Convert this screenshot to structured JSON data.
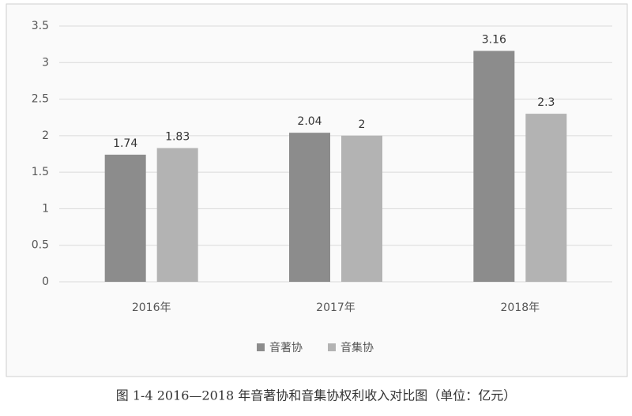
{
  "chart_data": {
    "type": "bar",
    "caption": "图 1-4 2016—2018 年音著协和音集协权利收入对比图（单位：亿元）",
    "categories": [
      "2016年",
      "2017年",
      "2018年"
    ],
    "series": [
      {
        "name": "音著协",
        "color": "#8c8c8c",
        "values": [
          1.74,
          2.04,
          3.16
        ]
      },
      {
        "name": "音集协",
        "color": "#b3b3b3",
        "values": [
          1.83,
          2,
          2.3
        ]
      }
    ],
    "ylim": [
      0,
      3.5
    ],
    "yticks": [
      0,
      0.5,
      1,
      1.5,
      2,
      2.5,
      3,
      3.5
    ],
    "grid": true
  }
}
